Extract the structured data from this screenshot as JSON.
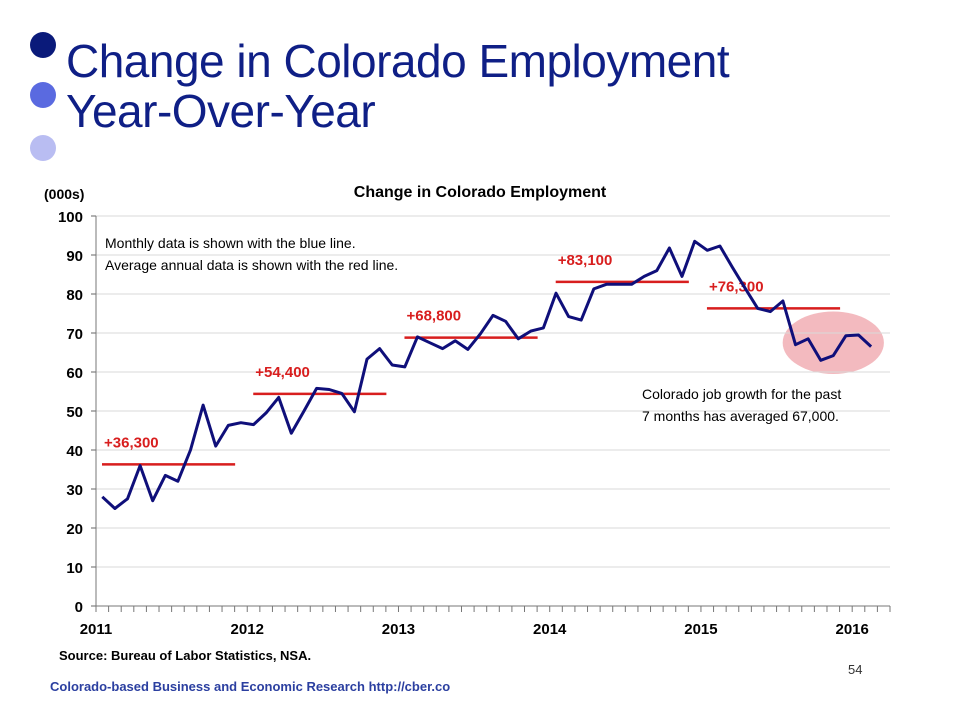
{
  "slide": {
    "title_line1": "Change in Colorado Employment",
    "title_line2": "Year-Over-Year",
    "source": "Source: Bureau of Labor Statistics, NSA.",
    "page_number": "54",
    "footer": "Colorado-based Business and Economic Research http://cber.co"
  },
  "colors": {
    "title": "#0f1f86",
    "monthly_line": "#0f0f7a",
    "annual_line": "#d81e1e",
    "highlight": "#f2b2b8",
    "grid": "#d9d9d9"
  },
  "chart_data": {
    "type": "line",
    "title": "Change in Colorado Employment",
    "ylabel": "(000s)",
    "ylim": [
      0,
      100
    ],
    "yticks": [
      0,
      10,
      20,
      30,
      40,
      50,
      60,
      70,
      80,
      90,
      100
    ],
    "xlim": [
      2011,
      2016.25
    ],
    "xticks": [
      "2011",
      "2012",
      "2013",
      "2014",
      "2015",
      "2016"
    ],
    "grid": true,
    "series": [
      {
        "kind": "monthly",
        "start": 2011,
        "step_months": 1,
        "values": [
          28,
          25,
          27.5,
          36,
          27,
          33.5,
          32,
          40,
          51.5,
          41,
          46.3,
          47,
          46.5,
          49.5,
          53.5,
          44.3,
          50,
          55.8,
          55.5,
          54.5,
          49.8,
          63.3,
          66,
          61.8,
          61.3,
          69,
          67.5,
          66,
          68,
          65.8,
          69.8,
          74.5,
          73,
          68.5,
          70.5,
          71.3,
          80.2,
          74.2,
          73.3,
          81.3,
          82.5,
          82.5,
          82.5,
          84.5,
          86,
          91.8,
          84.5,
          93.5,
          91.2,
          92.3,
          86.8,
          81.5,
          76.3,
          75.5,
          78.2,
          67,
          68.5,
          63,
          64.2,
          69.3,
          69.5,
          66.5
        ]
      },
      {
        "kind": "annual",
        "segments": [
          {
            "start": 2011.0,
            "end": 2011.92,
            "value": 36.3,
            "label": "+36,300"
          },
          {
            "start": 2012.0,
            "end": 2012.92,
            "value": 54.4,
            "label": "+54,400"
          },
          {
            "start": 2013.0,
            "end": 2013.92,
            "value": 68.8,
            "label": "+68,800"
          },
          {
            "start": 2014.0,
            "end": 2014.92,
            "value": 83.1,
            "label": "+83,100"
          },
          {
            "start": 2015.0,
            "end": 2015.92,
            "value": 76.3,
            "label": "+76,300"
          }
        ]
      }
    ],
    "annotations": [
      "Monthly data is shown with the blue line.",
      "Average annual data is shown with the red line.",
      "Colorado job growth for the past",
      "7 months has averaged 67,000."
    ],
    "highlight": {
      "x_start": 2015.58,
      "x_end": 2016.17,
      "y_center": 67.5,
      "y_span": 16
    }
  }
}
